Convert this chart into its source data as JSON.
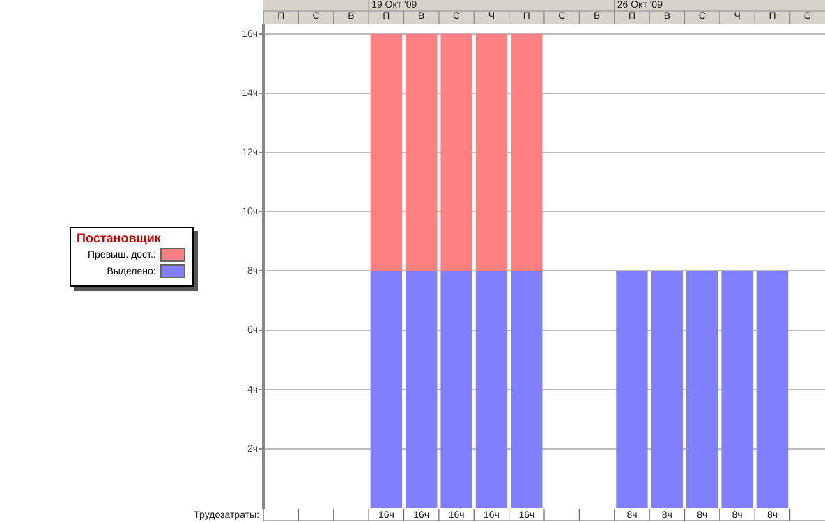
{
  "chart_data": {
    "type": "bar",
    "stacked": true,
    "categories": [
      "П",
      "С",
      "В",
      "П",
      "В",
      "С",
      "Ч",
      "П",
      "С",
      "В",
      "П",
      "В",
      "С",
      "Ч",
      "П",
      "С"
    ],
    "series": [
      {
        "name": "Выделено:",
        "color": "#8080ff",
        "values": [
          null,
          null,
          null,
          8,
          8,
          8,
          8,
          8,
          null,
          null,
          8,
          8,
          8,
          8,
          8,
          null
        ]
      },
      {
        "name": "Превыш. дост.:",
        "color": "#ff8080",
        "values": [
          null,
          null,
          null,
          8,
          8,
          8,
          8,
          8,
          null,
          null,
          null,
          null,
          null,
          null,
          null,
          null
        ]
      }
    ],
    "totals": [
      null,
      null,
      null,
      "16ч",
      "16ч",
      "16ч",
      "16ч",
      "16ч",
      null,
      null,
      "8ч",
      "8ч",
      "8ч",
      "8ч",
      "8ч",
      null
    ],
    "ylim": [
      0,
      16.3
    ],
    "yticks": [
      {
        "value": 2,
        "label": "2ч"
      },
      {
        "value": 4,
        "label": "4ч"
      },
      {
        "value": 6,
        "label": "6ч"
      },
      {
        "value": 8,
        "label": "8ч"
      },
      {
        "value": 10,
        "label": "10ч"
      },
      {
        "value": 12,
        "label": "12ч"
      },
      {
        "value": 14,
        "label": "14ч"
      },
      {
        "value": 16,
        "label": "16ч"
      }
    ],
    "grid": "y",
    "legend": "left",
    "legend_title": "Постановщик",
    "xlabel": "Трудозатраты:",
    "annotations": [
      "19 Окт '09",
      "26 Окт '09"
    ]
  }
}
